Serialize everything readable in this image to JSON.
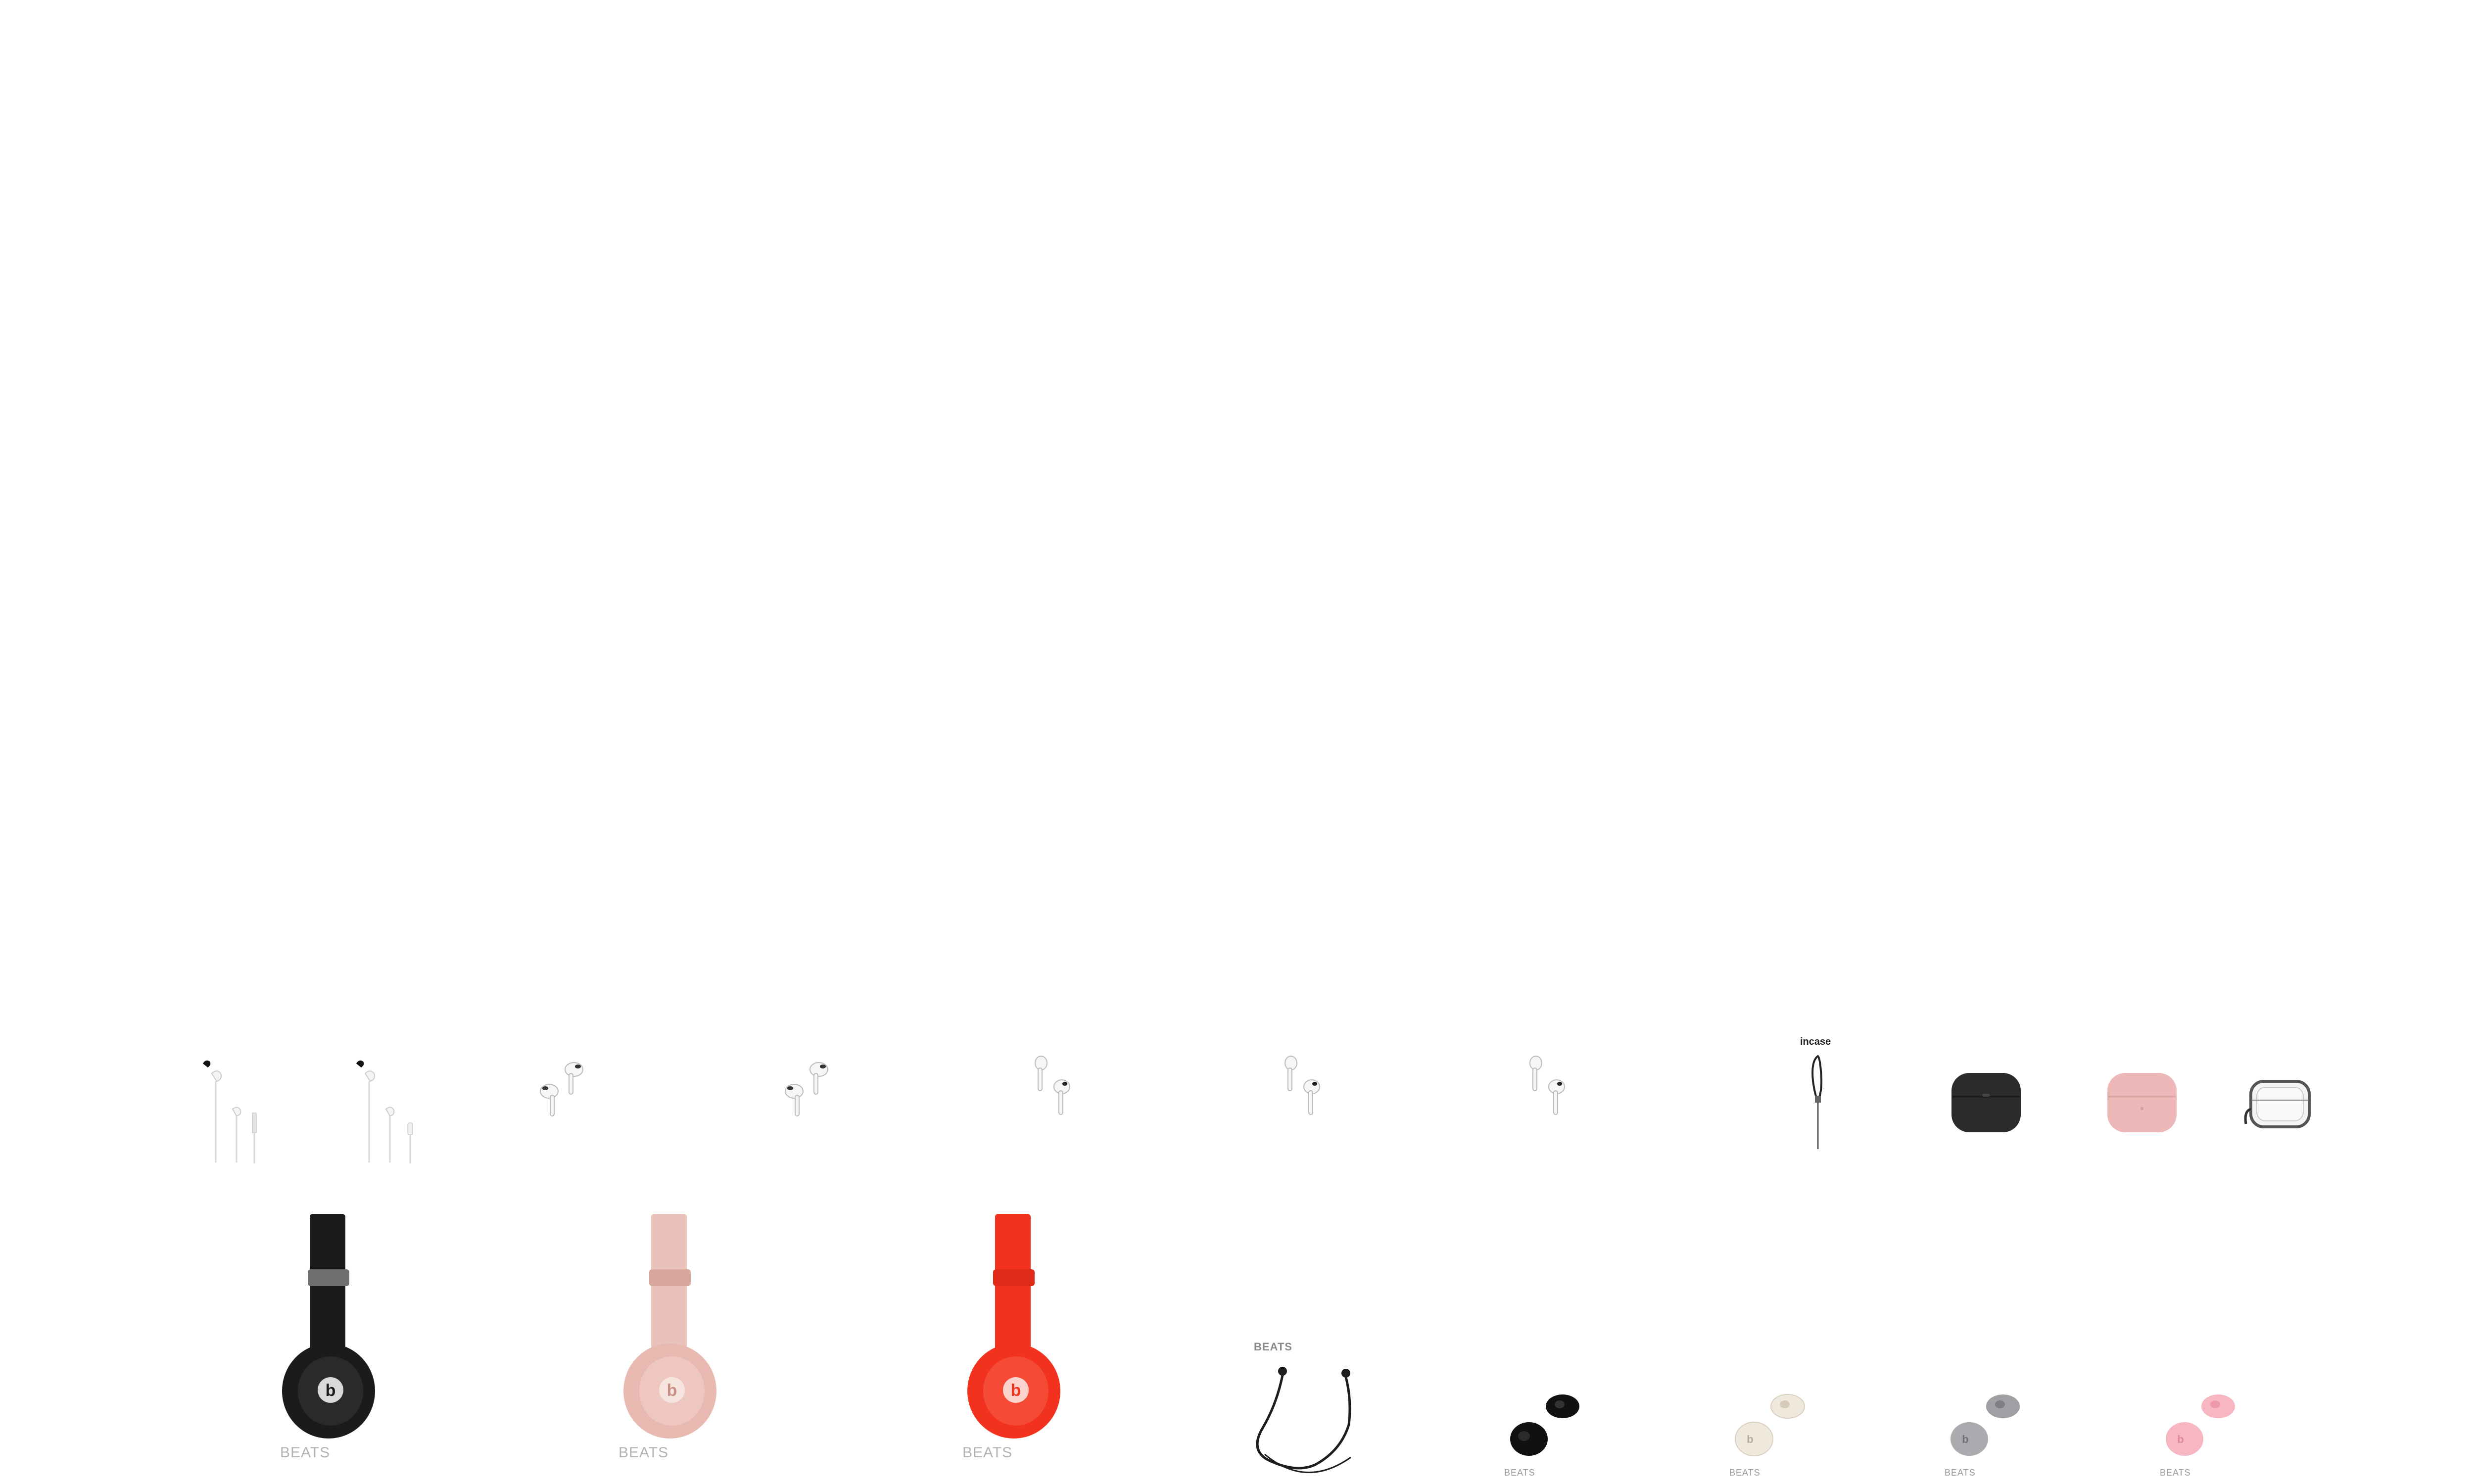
{
  "products_row1": [
    {
      "name": "earpods-usbc",
      "label": ""
    },
    {
      "name": "earpods-lightning",
      "label": ""
    },
    {
      "name": "airpods-pro-2",
      "label": ""
    },
    {
      "name": "airpods-pro-2-alt",
      "label": ""
    },
    {
      "name": "airpods-3",
      "label": ""
    },
    {
      "name": "airpods-3-alt",
      "label": ""
    },
    {
      "name": "airpods-3-alt2",
      "label": ""
    },
    {
      "name": "incase-strap",
      "label": "incase"
    },
    {
      "name": "case-black",
      "label": ""
    },
    {
      "name": "case-pink",
      "label": ""
    },
    {
      "name": "case-clear",
      "label": ""
    }
  ],
  "products_row2": [
    {
      "name": "beats-solo-black",
      "label": "BEATS",
      "color": "#1b1b1b"
    },
    {
      "name": "beats-solo-rose",
      "label": "BEATS",
      "color": "#e7b9b0"
    },
    {
      "name": "beats-solo-red",
      "label": "BEATS",
      "color": "#f2321f"
    },
    {
      "name": "beats-flex",
      "label": "BEATS",
      "color": "#1e1e1e"
    },
    {
      "name": "beats-buds-black",
      "label": "BEATS",
      "color": "#111111"
    },
    {
      "name": "beats-buds-ivory",
      "label": "BEATS",
      "color": "#efe8dc"
    },
    {
      "name": "beats-buds-gray",
      "label": "BEATS",
      "color": "#9ea0a4"
    },
    {
      "name": "beats-buds-pink",
      "label": "BEATS",
      "color": "#f6b7c2"
    }
  ],
  "colors": {
    "background": "#ffffff",
    "case_black": "#2b2b2d",
    "case_pink": "#eeb8b8",
    "case_clear_edge": "#555555"
  }
}
